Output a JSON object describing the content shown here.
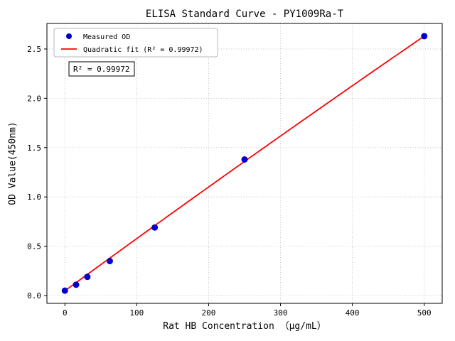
{
  "chart_data": {
    "type": "scatter",
    "title": "ELISA Standard Curve - PY1009Ra-T",
    "xlabel": "Rat HB Concentration （μg/mL）",
    "ylabel": "OD Value(450nm)",
    "xlim": [
      -25,
      525
    ],
    "ylim": [
      -0.079,
      2.759
    ],
    "grid": true,
    "legend_position": "upper left",
    "xticks": {
      "values": [
        0,
        100,
        200,
        300,
        400,
        500
      ],
      "labels": [
        "0",
        "100",
        "200",
        "300",
        "400",
        "500"
      ]
    },
    "yticks": {
      "values": [
        0.0,
        0.5,
        1.0,
        1.5,
        2.0,
        2.5
      ],
      "labels": [
        "0.0",
        "0.5",
        "1.0",
        "1.5",
        "2.0",
        "2.5"
      ]
    },
    "series": {
      "scatter": {
        "name": "Measured OD",
        "color": "#0000cd",
        "x": [
          0,
          15.6,
          31.25,
          62.5,
          125,
          250,
          500
        ],
        "y": [
          0.05,
          0.11,
          0.19,
          0.35,
          0.69,
          1.38,
          2.63
        ]
      },
      "fit": {
        "name": "Quadratic fit (R² = 0.99972)",
        "color": "#ff0000",
        "coeffs": {
          "a": 0.048,
          "b": 0.00533,
          "c": -3.3e-07
        },
        "x_range": [
          0,
          500
        ]
      }
    },
    "annotation": {
      "text": "R² = 0.99972"
    },
    "r_squared": "0.99972",
    "colors": {
      "grid": "#b8b8b8",
      "spine": "#000000",
      "background": "#ffffff"
    }
  }
}
